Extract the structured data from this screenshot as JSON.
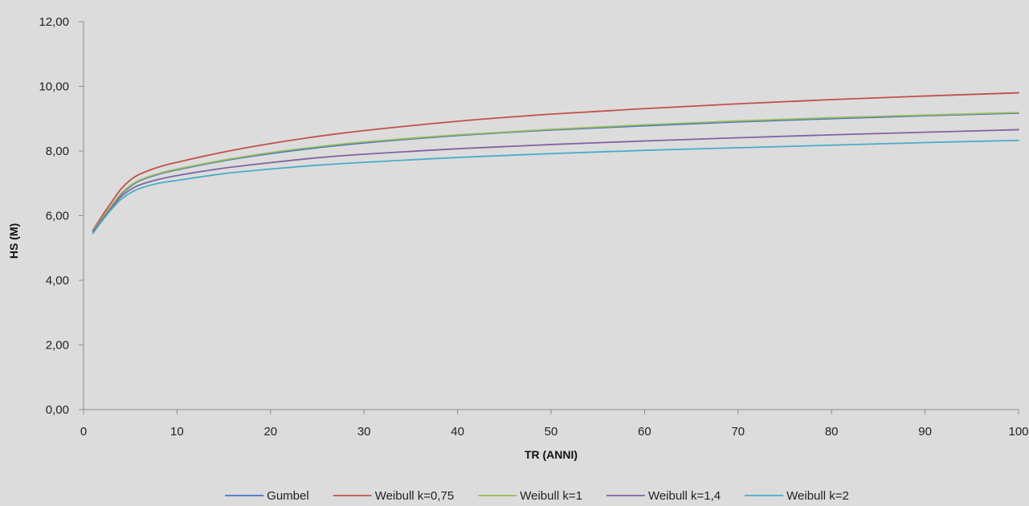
{
  "chart_data": {
    "type": "line",
    "title": "",
    "xlabel": "TR (ANNI)",
    "ylabel": "HS (M)",
    "xlim": [
      0,
      100
    ],
    "ylim": [
      0,
      12
    ],
    "x_ticks": [
      "0",
      "10",
      "20",
      "30",
      "40",
      "50",
      "60",
      "70",
      "80",
      "90",
      "100"
    ],
    "y_ticks": [
      "0,00",
      "2,00",
      "4,00",
      "6,00",
      "8,00",
      "10,00",
      "12,00"
    ],
    "grid": false,
    "legend_position": "bottom",
    "x": [
      1,
      2,
      3,
      4,
      5,
      6,
      8,
      10,
      15,
      20,
      25,
      30,
      40,
      50,
      60,
      70,
      80,
      90,
      100
    ],
    "series": [
      {
        "name": "Gumbel",
        "color": "#4472c4",
        "values": [
          5.5,
          5.9,
          6.3,
          6.65,
          6.9,
          7.08,
          7.28,
          7.42,
          7.7,
          7.92,
          8.1,
          8.25,
          8.48,
          8.65,
          8.78,
          8.9,
          9.0,
          9.09,
          9.17
        ]
      },
      {
        "name": "Weibull k=0,75",
        "color": "#c0504d",
        "values": [
          5.55,
          6.0,
          6.42,
          6.82,
          7.1,
          7.28,
          7.5,
          7.65,
          7.97,
          8.23,
          8.45,
          8.63,
          8.92,
          9.14,
          9.31,
          9.46,
          9.59,
          9.7,
          9.8
        ]
      },
      {
        "name": "Weibull k=1",
        "color": "#9bbb59",
        "values": [
          5.52,
          5.93,
          6.32,
          6.68,
          6.93,
          7.1,
          7.3,
          7.44,
          7.72,
          7.95,
          8.13,
          8.28,
          8.5,
          8.67,
          8.81,
          8.93,
          9.03,
          9.11,
          9.19
        ]
      },
      {
        "name": "Weibull k=1,4",
        "color": "#8064a2",
        "values": [
          5.5,
          5.88,
          6.25,
          6.58,
          6.8,
          6.95,
          7.12,
          7.24,
          7.47,
          7.64,
          7.79,
          7.9,
          8.07,
          8.2,
          8.31,
          8.41,
          8.5,
          8.58,
          8.66
        ]
      },
      {
        "name": "Weibull k=2",
        "color": "#4bacc6",
        "values": [
          5.45,
          5.84,
          6.2,
          6.5,
          6.7,
          6.84,
          7.0,
          7.09,
          7.3,
          7.44,
          7.56,
          7.65,
          7.8,
          7.92,
          8.02,
          8.1,
          8.18,
          8.26,
          8.33
        ]
      }
    ]
  }
}
